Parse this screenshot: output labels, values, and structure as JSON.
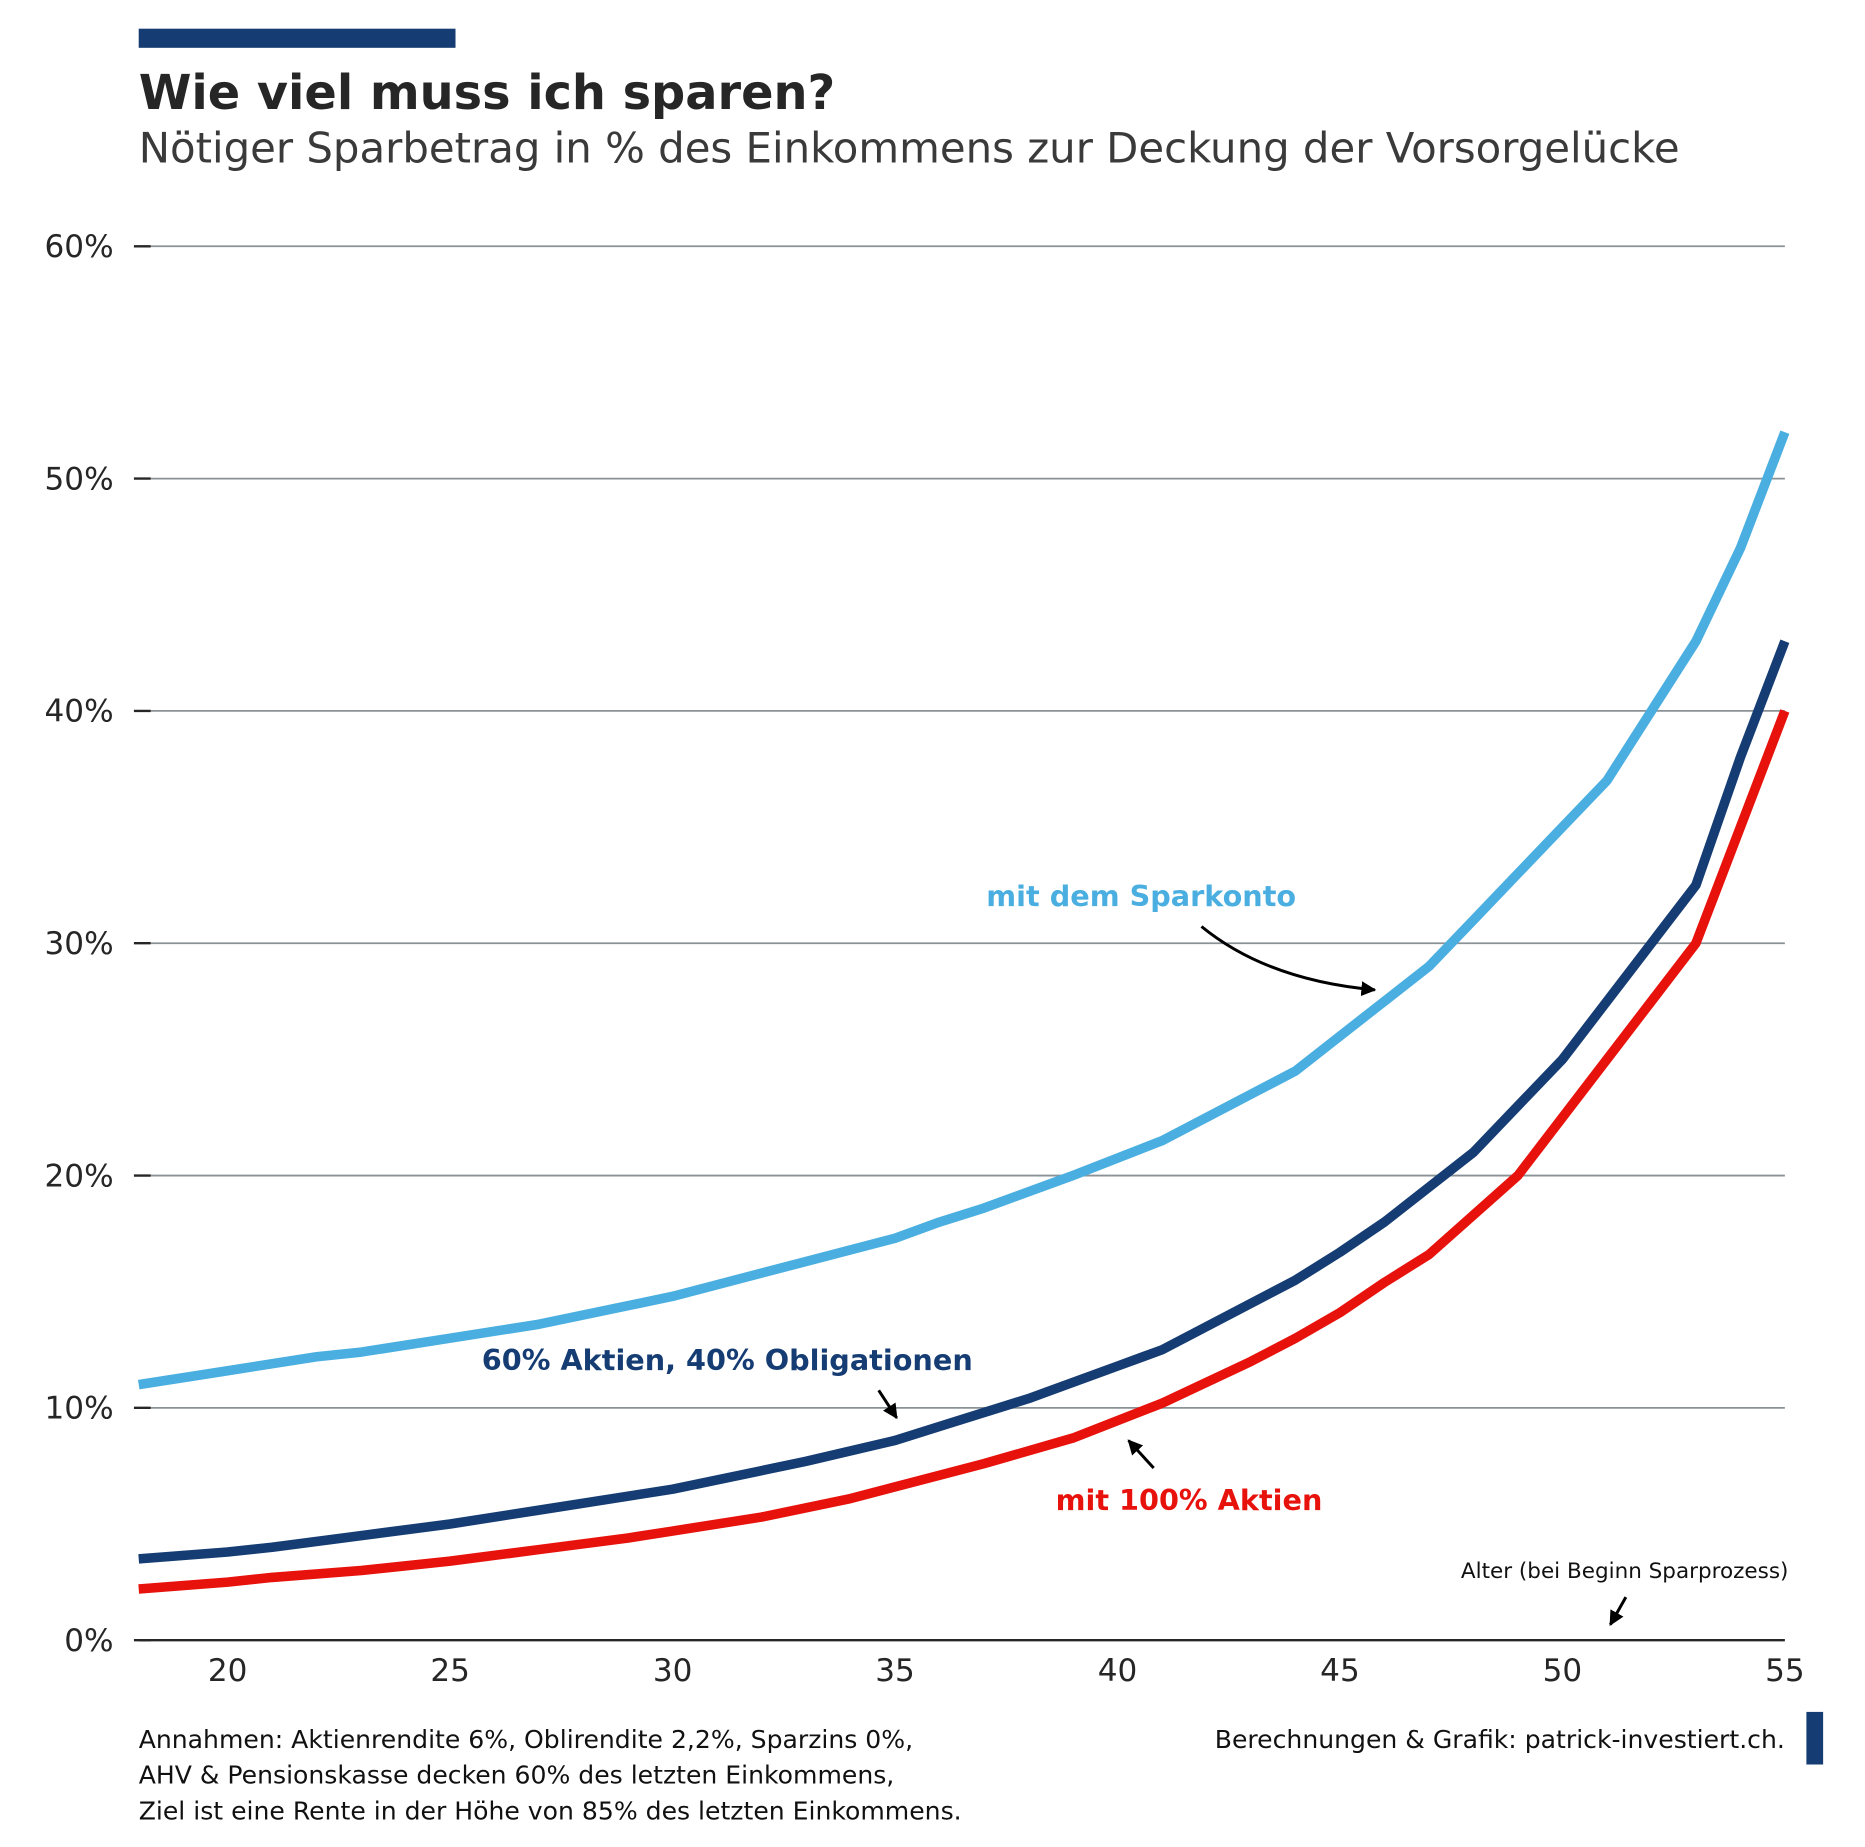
{
  "header": {
    "title": "Wie viel muss ich sparen?",
    "subtitle": "Nötiger Sparbetrag in % des Einkommens zur Deckung der Vorsorgelücke"
  },
  "colors": {
    "accent": "#163d73",
    "sparkonto": "#4aafe0",
    "mix": "#163d73",
    "aktien": "#e8120c",
    "grid": "#8a9296",
    "text": "#262626"
  },
  "chart_data": {
    "type": "line",
    "title": "Wie viel muss ich sparen?",
    "xlabel": "Alter (bei Beginn Sparprozess)",
    "ylabel": "",
    "xlim": [
      18,
      55
    ],
    "ylim": [
      0,
      60
    ],
    "grid": "horizontal",
    "x_ticks": [
      20,
      25,
      30,
      35,
      40,
      45,
      50,
      55
    ],
    "y_ticks": [
      0,
      10,
      20,
      30,
      40,
      50,
      60
    ],
    "y_tick_labels": [
      "0%",
      "10%",
      "20%",
      "30%",
      "40%",
      "50%",
      "60%"
    ],
    "series": [
      {
        "name": "mit dem Sparkonto",
        "color": "#4aafe0",
        "x": [
          18,
          20,
          22,
          23,
          25,
          27,
          30,
          33,
          35,
          36,
          37,
          39,
          41,
          44,
          45,
          47,
          48,
          50,
          51,
          53,
          54,
          55
        ],
        "y": [
          11,
          11.6,
          12.2,
          12.4,
          13,
          13.6,
          14.8,
          16.3,
          17.3,
          18,
          18.6,
          20,
          21.5,
          24.5,
          26,
          29,
          31,
          35,
          37,
          43,
          47,
          52
        ]
      },
      {
        "name": "60% Aktien, 40% Obligationen",
        "color": "#163d73",
        "x": [
          18,
          20,
          21,
          23,
          25,
          27,
          30,
          33,
          35,
          36,
          38,
          40,
          41,
          44,
          45,
          46,
          48,
          50,
          53,
          54,
          55
        ],
        "y": [
          3.5,
          3.8,
          4,
          4.5,
          5,
          5.6,
          6.5,
          7.7,
          8.6,
          9.2,
          10.4,
          11.8,
          12.5,
          15.5,
          16.7,
          18,
          21,
          25,
          32.5,
          38,
          43
        ]
      },
      {
        "name": "mit 100% Aktien",
        "color": "#e8120c",
        "x": [
          18,
          20,
          21,
          23,
          25,
          27,
          29,
          30,
          32,
          34,
          36,
          37,
          39,
          41,
          43,
          44,
          45,
          46,
          47,
          49,
          51,
          53,
          55
        ],
        "y": [
          2.2,
          2.5,
          2.7,
          3,
          3.4,
          3.9,
          4.4,
          4.7,
          5.3,
          6.1,
          7.1,
          7.6,
          8.7,
          10.2,
          12,
          13,
          14.1,
          15.4,
          16.6,
          20,
          25,
          30,
          40
        ]
      }
    ],
    "annotations": {
      "sparkonto": "mit dem Sparkonto",
      "mix": "60% Aktien, 40% Obligationen",
      "aktien": "mit 100% Aktien",
      "xaxis": "Alter (bei Beginn Sparprozess)"
    }
  },
  "footer": {
    "assumptions": [
      "Annahmen: Aktienrendite 6%, Oblirendite 2,2%, Sparzins 0%,",
      "AHV & Pensionskasse decken 60% des letzten Einkommens,",
      "Ziel ist eine Rente in der Höhe von 85% des letzten Einkommens."
    ],
    "source": "Berechnungen & Grafik: patrick-investiert.ch."
  }
}
